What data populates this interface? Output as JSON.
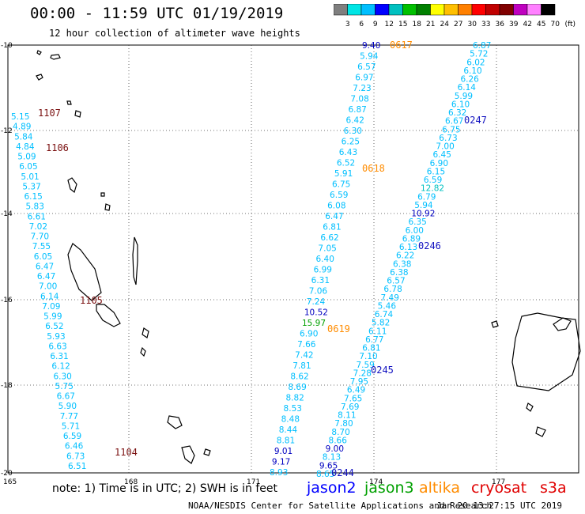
{
  "header": {
    "title": "00:00 - 11:59 UTC 01/19/2019",
    "subtitle": "12 hour collection of altimeter wave heights"
  },
  "colorbar": {
    "unit": "(ft)",
    "labels": [
      "3",
      "6",
      "9",
      "12",
      "15",
      "18",
      "21",
      "24",
      "27",
      "30",
      "33",
      "36",
      "39",
      "42",
      "45",
      "70"
    ],
    "colors": [
      "#7f7f7f",
      "#00e5e5",
      "#00bfff",
      "#0000ff",
      "#00c0c0",
      "#00c000",
      "#008000",
      "#ffff00",
      "#ffbf00",
      "#ff8000",
      "#ff0000",
      "#c00000",
      "#800000",
      "#bf00bf",
      "#ff80ff",
      "#000000"
    ]
  },
  "axes": {
    "lat_ticks": [
      "-10",
      "-12",
      "-14",
      "-16",
      "-18",
      "-20"
    ],
    "lon_ticks": [
      "165",
      "168",
      "171",
      "174",
      "177"
    ]
  },
  "tracks": [
    {
      "mission": "cryosat",
      "color": "#7a1010",
      "pass_labels": [
        "1107",
        "1106",
        "1105",
        "1104"
      ],
      "values": [
        "5.15",
        "4.89",
        "5.84",
        "4.84",
        "5.09",
        "6.05",
        "5.01",
        "5.37",
        "6.15",
        "5.83",
        "6.61",
        "7.02",
        "7.70",
        "7.55",
        "6.05",
        "6.47",
        "6.47",
        "7.00",
        "6.14",
        "7.09",
        "5.99",
        "6.52",
        "5.93",
        "6.63",
        "6.31",
        "6.12",
        "6.30",
        "5.75",
        "6.67",
        "5.90",
        "7.77",
        "5.71",
        "6.59",
        "6.46",
        "6.73",
        "6.51"
      ]
    },
    {
      "mission": "altika",
      "color": "#ff8c00",
      "pass_labels": [
        "0617",
        "0618",
        "0619"
      ],
      "values": [
        "9.40",
        "5.94",
        "6.57",
        "6.97",
        "7.23",
        "7.08",
        "6.87",
        "6.42",
        "6.30",
        "6.25",
        "6.43",
        "6.52",
        "5.91",
        "6.75",
        "6.59",
        "6.08",
        "6.47",
        "6.81",
        "6.62",
        "7.05",
        "6.40",
        "6.99",
        "6.31",
        "7.06",
        "7.24",
        "10.52",
        "15.97",
        "6.90",
        "7.66",
        "7.42",
        "7.81",
        "8.62",
        "8.69",
        "8.82",
        "8.53",
        "8.48",
        "8.44",
        "8.81",
        "9.01",
        "9.17",
        "8.93"
      ]
    },
    {
      "mission": "jason2",
      "color": "#1010c0",
      "pass_labels": [
        "0247",
        "0246",
        "0245",
        "0244"
      ],
      "values": [
        "6.87",
        "5.72",
        "6.02",
        "6.10",
        "6.26",
        "6.14",
        "5.99",
        "6.10",
        "6.32",
        "6.67",
        "6.75",
        "6.73",
        "7.00",
        "6.45",
        "6.90",
        "6.15",
        "6.59",
        "12.82",
        "6.79",
        "5.94",
        "10.92",
        "6.35",
        "6.00",
        "6.89",
        "6.13",
        "6.22",
        "6.38",
        "6.38",
        "6.57",
        "6.78",
        "7.49",
        "5.46",
        "6.74",
        "5.82",
        "6.11",
        "6.77",
        "6.81",
        "7.10",
        "7.59",
        "7.28",
        "7.95",
        "6.49",
        "7.65",
        "7.69",
        "8.11",
        "7.80",
        "8.70",
        "8.66",
        "9.00",
        "8.13",
        "9.65",
        "8.65"
      ]
    }
  ],
  "legend": {
    "note": "note: 1) Time is in UTC; 2) SWH is in feet",
    "missions": [
      {
        "name": "jason2",
        "color": "#0000ff"
      },
      {
        "name": "jason3",
        "color": "#00a000"
      },
      {
        "name": "altika",
        "color": "#ff8c00"
      },
      {
        "name": "cryosat",
        "color": "#e00000"
      },
      {
        "name": "s3a",
        "color": "#e00000"
      }
    ]
  },
  "footer": {
    "credit": "NOAA/NESDIS Center for Satellite Applications and Research",
    "generated": "Jan 20 13:27:15 UTC 2019"
  }
}
